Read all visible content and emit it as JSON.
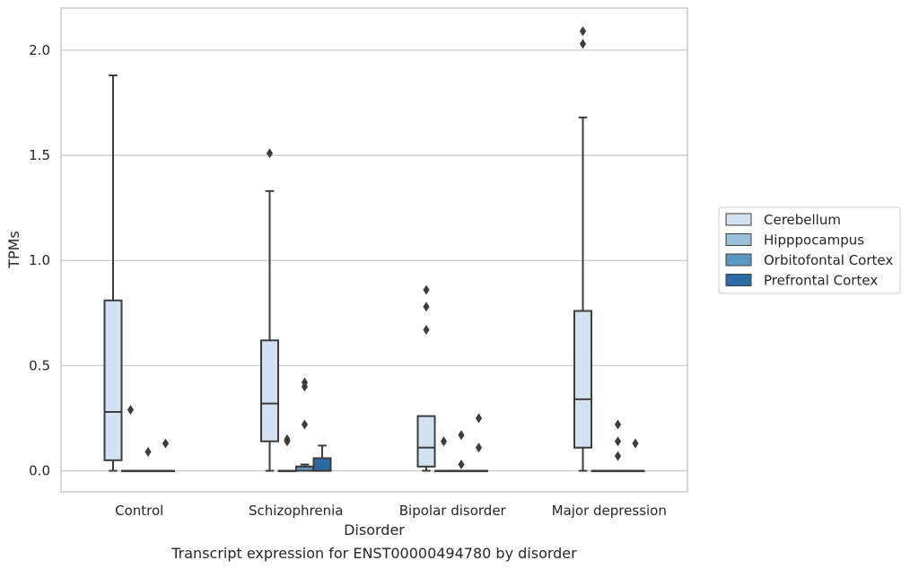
{
  "caption": "Transcript expression for ENST00000494780 by disorder",
  "chart_data": {
    "type": "box",
    "xlabel": "Disorder",
    "ylabel": "TPMs",
    "ylim": [
      -0.1,
      2.2
    ],
    "yticks": [
      0.0,
      0.5,
      1.0,
      1.5,
      2.0
    ],
    "ytick_labels": [
      "0.0",
      "0.5",
      "1.0",
      "1.5",
      "2.0"
    ],
    "grid": "horizontal",
    "legend_position": "right",
    "categories": [
      "Control",
      "Schizophrenia",
      "Bipolar disorder",
      "Major depression"
    ],
    "series": [
      {
        "name": "Cerebellum",
        "color": "#d3e2f0",
        "boxes": [
          {
            "q1": 0.05,
            "median": 0.28,
            "q3": 0.81,
            "whislo": 0.0,
            "whishi": 1.88,
            "fliers": []
          },
          {
            "q1": 0.14,
            "median": 0.32,
            "q3": 0.62,
            "whislo": 0.0,
            "whishi": 1.33,
            "fliers": [
              1.51
            ]
          },
          {
            "q1": 0.02,
            "median": 0.11,
            "q3": 0.26,
            "whislo": 0.0,
            "whishi": 0.26,
            "fliers": [
              0.67,
              0.78,
              0.86
            ]
          },
          {
            "q1": 0.11,
            "median": 0.34,
            "q3": 0.76,
            "whislo": 0.0,
            "whishi": 1.68,
            "fliers": [
              2.03,
              2.09
            ]
          }
        ]
      },
      {
        "name": "Hipppocampus",
        "color": "#9ac0da",
        "boxes": [
          {
            "q1": 0.0,
            "median": 0.0,
            "q3": 0.0,
            "whislo": 0.0,
            "whishi": 0.0,
            "fliers": [
              0.29
            ]
          },
          {
            "q1": 0.0,
            "median": 0.0,
            "q3": 0.0,
            "whislo": 0.0,
            "whishi": 0.0,
            "fliers": [
              0.14,
              0.15
            ]
          },
          {
            "q1": 0.0,
            "median": 0.0,
            "q3": 0.0,
            "whislo": 0.0,
            "whishi": 0.0,
            "fliers": [
              0.14
            ]
          },
          {
            "q1": 0.0,
            "median": 0.0,
            "q3": 0.0,
            "whislo": 0.0,
            "whishi": 0.0,
            "fliers": []
          }
        ]
      },
      {
        "name": "Orbitofontal Cortex",
        "color": "#5b97c3",
        "boxes": [
          {
            "q1": 0.0,
            "median": 0.0,
            "q3": 0.0,
            "whislo": 0.0,
            "whishi": 0.0,
            "fliers": [
              0.09
            ]
          },
          {
            "q1": 0.0,
            "median": 0.02,
            "q3": 0.02,
            "whislo": 0.0,
            "whishi": 0.03,
            "fliers": [
              0.22,
              0.4,
              0.42
            ]
          },
          {
            "q1": 0.0,
            "median": 0.0,
            "q3": 0.0,
            "whislo": 0.0,
            "whishi": 0.0,
            "fliers": [
              0.03,
              0.17
            ]
          },
          {
            "q1": 0.0,
            "median": 0.0,
            "q3": 0.0,
            "whislo": 0.0,
            "whishi": 0.0,
            "fliers": [
              0.07,
              0.14,
              0.22
            ]
          }
        ]
      },
      {
        "name": "Prefrontal Cortex",
        "color": "#2c6aa3",
        "boxes": [
          {
            "q1": 0.0,
            "median": 0.0,
            "q3": 0.0,
            "whislo": 0.0,
            "whishi": 0.0,
            "fliers": [
              0.13
            ]
          },
          {
            "q1": 0.0,
            "median": 0.0,
            "q3": 0.06,
            "whislo": 0.0,
            "whishi": 0.12,
            "fliers": []
          },
          {
            "q1": 0.0,
            "median": 0.0,
            "q3": 0.0,
            "whislo": 0.0,
            "whishi": 0.0,
            "fliers": [
              0.11,
              0.25
            ]
          },
          {
            "q1": 0.0,
            "median": 0.0,
            "q3": 0.0,
            "whislo": 0.0,
            "whishi": 0.0,
            "fliers": [
              0.13
            ]
          }
        ]
      }
    ]
  }
}
